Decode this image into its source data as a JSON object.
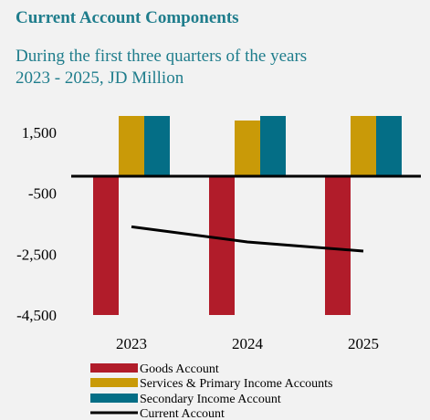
{
  "chart_data": {
    "type": "bar",
    "title": "Current Account Components",
    "subtitle_line1": "During the first three quarters of the years",
    "subtitle_line2": "2023 - 2025, JD Million",
    "categories": [
      "2023",
      "2024",
      "2025"
    ],
    "ylim": [
      -4500,
      1500
    ],
    "y_ticks": [
      1500,
      -500,
      -2500,
      -4500
    ],
    "y_tick_labels": [
      "1,500",
      "-500",
      "-2,500",
      "-4,500"
    ],
    "series": [
      {
        "name": "Goods Account",
        "type": "bar",
        "color": "#b11c2a",
        "values": [
          -4500,
          -4500,
          -4500
        ]
      },
      {
        "name": "Services & Primary Income Accounts",
        "type": "bar",
        "color": "#c99a08",
        "values": [
          2200,
          2000,
          2200
        ]
      },
      {
        "name": "Secondary Income Account",
        "type": "bar",
        "color": "#046e86",
        "values": [
          2200,
          2200,
          2200
        ]
      },
      {
        "name": "Current Account",
        "type": "line",
        "color": "#000000",
        "values": [
          -1600,
          -2100,
          -2400
        ]
      }
    ],
    "legend_position": "bottom",
    "grid": false
  }
}
